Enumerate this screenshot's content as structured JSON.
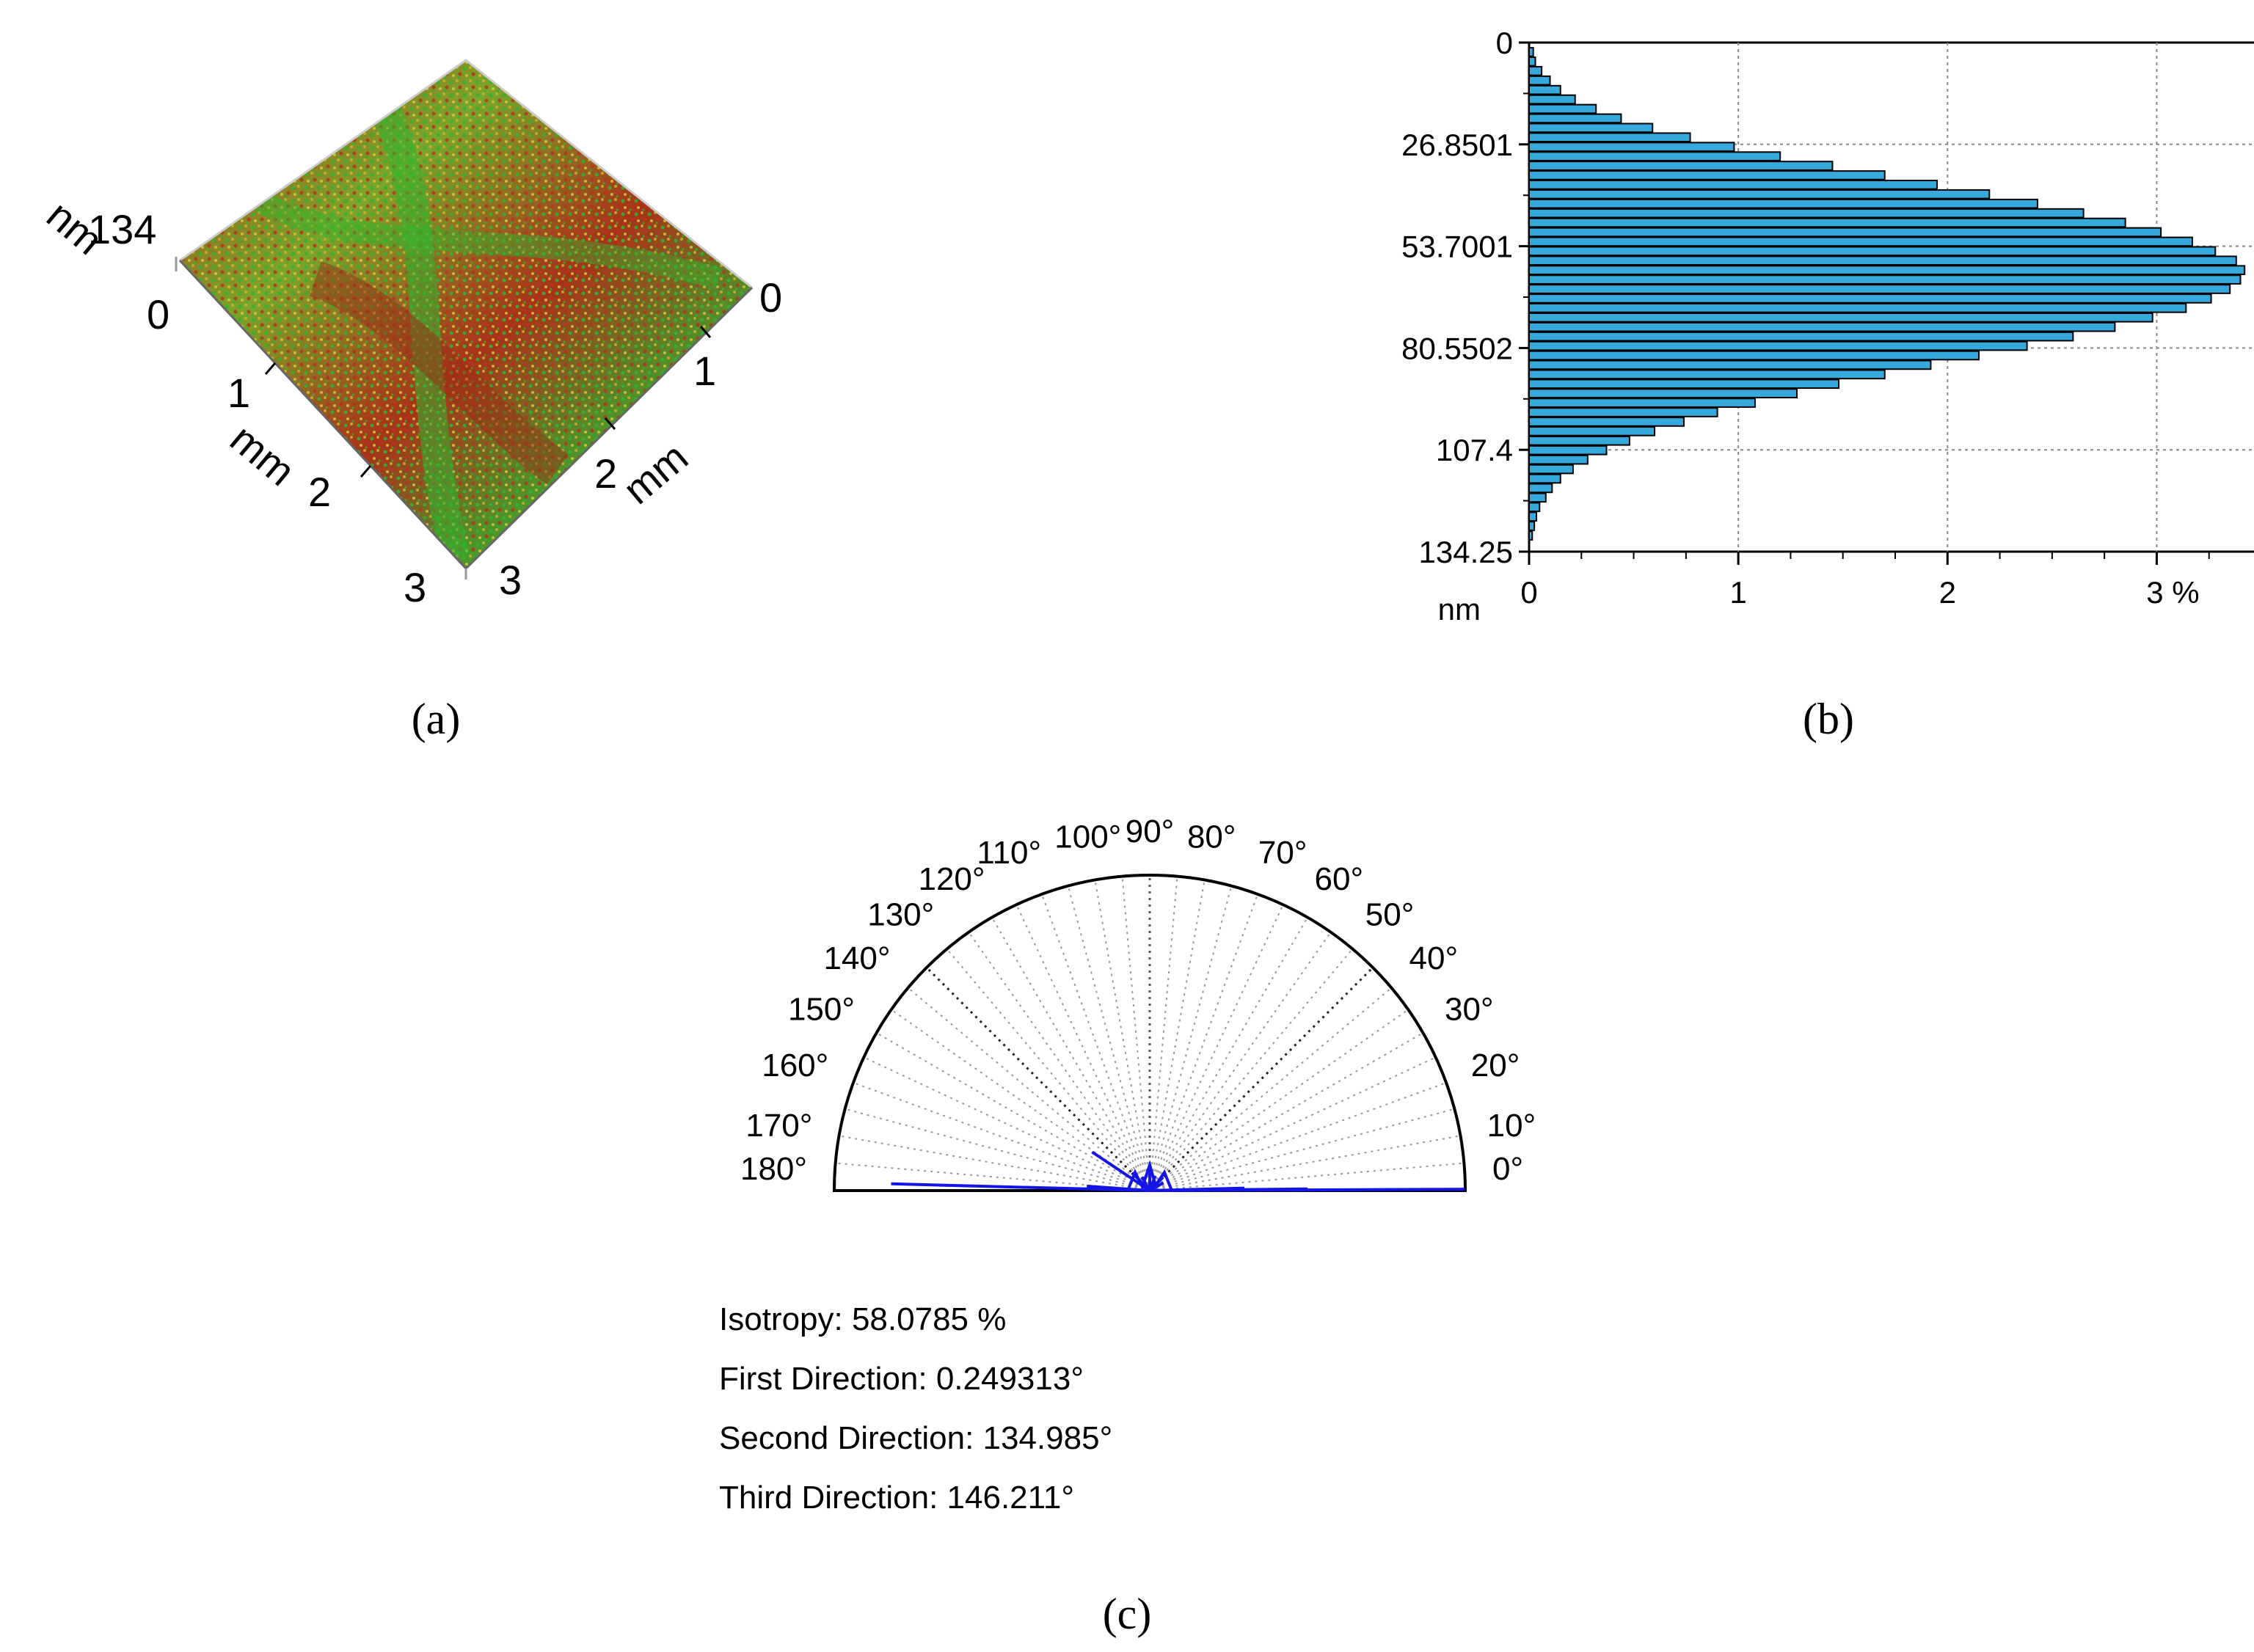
{
  "panel_labels": {
    "a": "(a)",
    "b": "(b)",
    "c": "(c)"
  },
  "colors": {
    "surface_red": "#b5341a",
    "surface_green": "#2fb52f",
    "surface_yellow": "#c8b42a",
    "hist_bar": "#36a9dc",
    "polar_line": "#1414e6",
    "grid": "#777777"
  },
  "chart_data": [
    {
      "id": "a",
      "type": "surface3d",
      "z_max_label": "134",
      "z_min_label": "0",
      "z_unit": "nm",
      "x_ticks": [
        "1",
        "2",
        "3"
      ],
      "y_ticks": [
        "0",
        "1",
        "2",
        "3"
      ],
      "x_unit": "mm",
      "y_unit": "mm"
    },
    {
      "id": "b",
      "type": "bar",
      "orientation": "horizontal",
      "title": "",
      "ylabel": "nm",
      "xlabel": "%",
      "y_ticks": [
        "0",
        "26.8501",
        "53.7001",
        "80.5502",
        "107.4",
        "134.25"
      ],
      "y_tick_values": [
        0,
        26.8501,
        53.7001,
        80.5502,
        107.4,
        134.25
      ],
      "x_ticks": [
        "0",
        "1",
        "2",
        "3 %"
      ],
      "x_tick_values": [
        0,
        1,
        2,
        3
      ],
      "ylim": [
        0,
        134.25
      ],
      "xlim": [
        0,
        3.5
      ],
      "grid": true,
      "bins_start": 2.5,
      "bin_width": 2.5,
      "values": [
        0.02,
        0.03,
        0.06,
        0.1,
        0.15,
        0.22,
        0.32,
        0.44,
        0.59,
        0.77,
        0.98,
        1.2,
        1.45,
        1.7,
        1.95,
        2.2,
        2.43,
        2.65,
        2.85,
        3.02,
        3.17,
        3.28,
        3.38,
        3.42,
        3.4,
        3.35,
        3.26,
        3.14,
        2.98,
        2.8,
        2.6,
        2.38,
        2.15,
        1.92,
        1.7,
        1.48,
        1.28,
        1.08,
        0.9,
        0.74,
        0.6,
        0.48,
        0.37,
        0.28,
        0.21,
        0.15,
        0.11,
        0.08,
        0.05,
        0.035,
        0.025,
        0.015
      ]
    },
    {
      "id": "c",
      "type": "polar-rose",
      "angle_labels": [
        "0°",
        "10°",
        "20°",
        "30°",
        "40°",
        "50°",
        "60°",
        "70°",
        "80°",
        "90°",
        "100°",
        "110°",
        "120°",
        "130°",
        "140°",
        "150°",
        "160°",
        "170°",
        "180°"
      ],
      "angles": [
        0,
        10,
        20,
        30,
        40,
        50,
        60,
        70,
        80,
        90,
        100,
        110,
        120,
        130,
        140,
        150,
        160,
        170,
        180
      ],
      "rose": [
        {
          "angle": 0.25,
          "r": 1.0
        },
        {
          "angle": 0.6,
          "r": 0.5
        },
        {
          "angle": 1.5,
          "r": 0.3
        },
        {
          "angle": 178.5,
          "r": 0.82
        },
        {
          "angle": 176,
          "r": 0.2
        },
        {
          "angle": 135,
          "r": 0.08
        },
        {
          "angle": 146.2,
          "r": 0.22
        },
        {
          "angle": 120,
          "r": 0.05
        },
        {
          "angle": 90,
          "r": 0.07
        },
        {
          "angle": 70,
          "r": 0.05
        },
        {
          "angle": 45,
          "r": 0.06
        },
        {
          "angle": 30,
          "r": 0.05
        }
      ],
      "stats": {
        "isotropy": "Isotropy: 58.0785 %",
        "first": "First Direction: 0.249313°",
        "second": "Second Direction: 134.985°",
        "third": "Third Direction: 146.211°"
      }
    }
  ]
}
